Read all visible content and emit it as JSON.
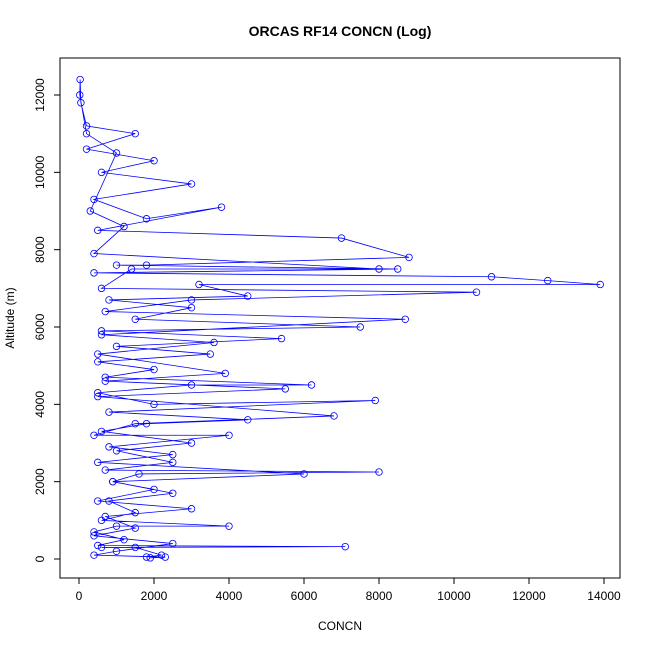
{
  "chart_data": {
    "type": "line",
    "markers": true,
    "title": "ORCAS RF14 CONCN (Log)",
    "xlabel": "CONCN",
    "ylabel": "Altitude (m)",
    "color": "#0000ff",
    "x": [
      1800,
      2200,
      1500,
      600,
      7100,
      500,
      1200,
      400,
      1000,
      4000,
      600,
      1500,
      800,
      2500,
      900,
      1600,
      8000,
      700,
      2500,
      1000,
      3000,
      600,
      1800,
      4500,
      800,
      7900,
      2000,
      500,
      3000,
      6200,
      700,
      2000,
      500,
      3500,
      1000,
      5400,
      600,
      7500,
      1500,
      3000,
      800,
      4500,
      3200,
      13900,
      12500,
      11000,
      400,
      8500,
      1000,
      1800,
      8800,
      7000,
      500,
      3800,
      1800,
      400,
      3000,
      600,
      2000,
      200,
      1500,
      200,
      50,
      30,
      20,
      200,
      1000,
      300,
      1200,
      400,
      8000,
      1400,
      600,
      10600,
      3000,
      700,
      8700,
      600,
      3600,
      500,
      3900,
      700,
      5500,
      500,
      6800,
      1500,
      400,
      4000,
      800,
      2500,
      500,
      6000,
      900,
      2000,
      500,
      3000,
      700,
      1500,
      400,
      2500,
      1000,
      400,
      2300,
      1900
    ],
    "values": [
      50,
      100,
      300,
      300,
      320,
      350,
      500,
      700,
      850,
      850,
      1000,
      1200,
      1500,
      1700,
      2000,
      2200,
      2250,
      2300,
      2500,
      2800,
      3000,
      3300,
      3500,
      3600,
      3800,
      4100,
      4000,
      4300,
      4500,
      4500,
      4700,
      4900,
      5100,
      5300,
      5500,
      5700,
      5900,
      6000,
      6200,
      6500,
      6700,
      6800,
      7100,
      7100,
      7200,
      7300,
      7400,
      7500,
      7600,
      7600,
      7800,
      8300,
      8500,
      9100,
      8800,
      9300,
      9700,
      10000,
      10300,
      10600,
      11000,
      11200,
      11800,
      12400,
      12000,
      11000,
      10500,
      9000,
      8600,
      7900,
      7500,
      7500,
      7000,
      6900,
      6700,
      6400,
      6200,
      5800,
      5600,
      5300,
      4800,
      4600,
      4400,
      4200,
      3700,
      3500,
      3200,
      3200,
      2900,
      2700,
      2500,
      2200,
      2000,
      1800,
      1500,
      1300,
      1100,
      800,
      600,
      400,
      200,
      100,
      50,
      30
    ],
    "xlim": [
      -507,
      14427
    ],
    "ylim": [
      -491,
      12957
    ],
    "xticks": [
      0,
      2000,
      4000,
      6000,
      8000,
      10000,
      12000,
      14000
    ],
    "yticks": [
      0,
      2000,
      4000,
      6000,
      8000,
      10000,
      12000
    ]
  }
}
